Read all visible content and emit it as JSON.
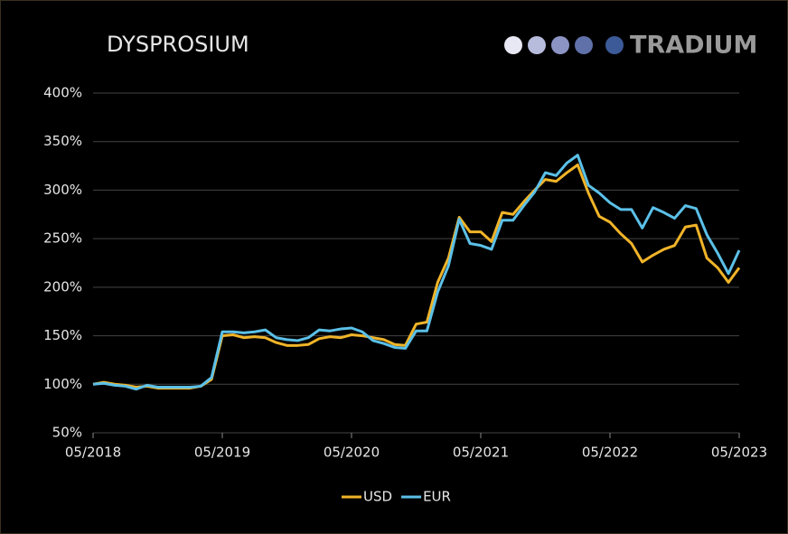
{
  "chart_data": {
    "type": "line",
    "title": "DYSPROSIUM",
    "brand": "TRADIUM",
    "x": [
      "2018-05",
      "2018-06",
      "2018-07",
      "2018-08",
      "2018-09",
      "2018-10",
      "2018-11",
      "2018-12",
      "2019-01",
      "2019-02",
      "2019-03",
      "2019-04",
      "2019-05",
      "2019-06",
      "2019-07",
      "2019-08",
      "2019-09",
      "2019-10",
      "2019-11",
      "2019-12",
      "2020-01",
      "2020-02",
      "2020-03",
      "2020-04",
      "2020-05",
      "2020-06",
      "2020-07",
      "2020-08",
      "2020-09",
      "2020-10",
      "2020-11",
      "2020-12",
      "2021-01",
      "2021-02",
      "2021-03",
      "2021-04",
      "2021-05",
      "2021-06",
      "2021-07",
      "2021-08",
      "2021-09",
      "2021-10",
      "2021-11",
      "2021-12",
      "2022-01",
      "2022-02",
      "2022-03",
      "2022-04",
      "2022-05",
      "2022-06",
      "2022-07",
      "2022-08",
      "2022-09",
      "2022-10",
      "2022-11",
      "2022-12",
      "2023-01",
      "2023-02",
      "2023-03",
      "2023-04",
      "2023-05"
    ],
    "series": [
      {
        "name": "USD",
        "color": "#f0b429",
        "values": [
          100,
          102,
          100,
          99,
          97,
          98,
          96,
          96,
          96,
          96,
          98,
          105,
          150,
          151,
          148,
          149,
          148,
          143,
          140,
          140,
          141,
          147,
          149,
          148,
          151,
          150,
          148,
          146,
          141,
          140,
          162,
          164,
          205,
          230,
          272,
          257,
          257,
          247,
          277,
          275,
          288,
          300,
          311,
          309,
          318,
          326,
          297,
          273,
          267,
          255,
          245,
          226,
          233,
          239,
          243,
          262,
          264,
          230,
          220,
          205,
          220
        ]
      },
      {
        "name": "EUR",
        "color": "#5bc0e8",
        "values": [
          100,
          101,
          99,
          98,
          95,
          99,
          97,
          97,
          97,
          97,
          98,
          107,
          154,
          154,
          153,
          154,
          156,
          148,
          146,
          145,
          148,
          156,
          155,
          157,
          158,
          154,
          145,
          142,
          138,
          137,
          155,
          155,
          195,
          222,
          270,
          245,
          243,
          239,
          269,
          269,
          284,
          298,
          318,
          315,
          328,
          336,
          305,
          297,
          287,
          280,
          280,
          261,
          282,
          277,
          271,
          284,
          281,
          254,
          235,
          214,
          238
        ]
      }
    ],
    "ylim": [
      50,
      400
    ],
    "yticks": [
      {
        "value": 50,
        "label": "50%"
      },
      {
        "value": 100,
        "label": "100%"
      },
      {
        "value": 150,
        "label": "150%"
      },
      {
        "value": 200,
        "label": "200%"
      },
      {
        "value": 250,
        "label": "250%"
      },
      {
        "value": 300,
        "label": "300%"
      },
      {
        "value": 350,
        "label": "350%"
      },
      {
        "value": 400,
        "label": "400%"
      }
    ],
    "xticks": [
      {
        "value": "2018-05",
        "label": "05/2018"
      },
      {
        "value": "2019-05",
        "label": "05/2019"
      },
      {
        "value": "2020-05",
        "label": "05/2020"
      },
      {
        "value": "2021-05",
        "label": "05/2021"
      },
      {
        "value": "2022-05",
        "label": "05/2022"
      },
      {
        "value": "2023-05",
        "label": "05/2023"
      }
    ],
    "grid": true,
    "legend": "bottom"
  }
}
